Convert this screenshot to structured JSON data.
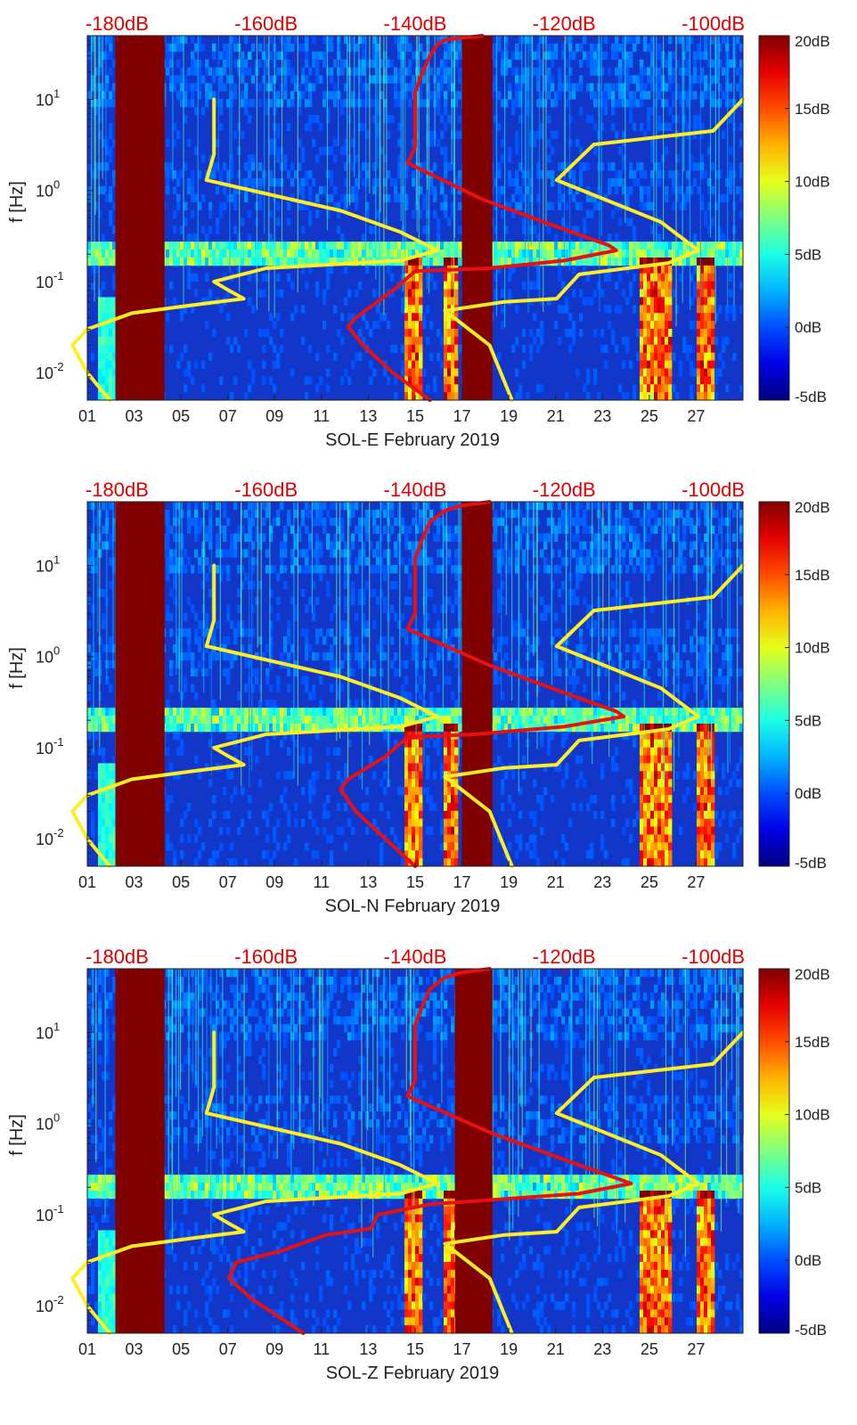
{
  "chart_data": [
    {
      "type": "heatmap",
      "title": "",
      "xlabel": "SOL-E February 2019",
      "ylabel": "f [Hz]",
      "x_ticks": [
        "01",
        "03",
        "05",
        "07",
        "09",
        "11",
        "13",
        "15",
        "17",
        "19",
        "21",
        "23",
        "25",
        "27"
      ],
      "y_ticks": [
        {
          "value": 0.01,
          "label": "10^-2"
        },
        {
          "value": 0.1,
          "label": "10^-1"
        },
        {
          "value": 1,
          "label": "10^0"
        },
        {
          "value": 10,
          "label": "10^1"
        }
      ],
      "xlim": [
        1,
        29
      ],
      "ylim": [
        0.005,
        50
      ],
      "yscale": "log",
      "colorbar": {
        "ticks": [
          "-5dB",
          "0dB",
          "5dB",
          "10dB",
          "15dB",
          "20dB"
        ],
        "range": [
          -5,
          20
        ],
        "colormap": "jet"
      },
      "top_axis": {
        "ticks": [
          "-180dB",
          "-160dB",
          "-140dB",
          "-120dB",
          "-100dB"
        ],
        "range": [
          -184,
          -96
        ],
        "color": "#e00000"
      },
      "data_gaps_days": [
        [
          2.2,
          4.3
        ],
        [
          17.0,
          18.3
        ]
      ],
      "colors": {
        "gap": "#800000",
        "yellow_line": "#ffee22",
        "red_line": "#e81010"
      },
      "series": [
        {
          "color": "yellow",
          "axis": "top",
          "points": [
            [
              -167,
              10
            ],
            [
              -167,
              6
            ],
            [
              -167,
              4
            ],
            [
              -167,
              2.5
            ],
            [
              -168,
              1.3
            ],
            [
              -150,
              0.6
            ],
            [
              -142,
              0.35
            ],
            [
              -137,
              0.22
            ],
            [
              -142,
              0.17
            ],
            [
              -160,
              0.14
            ],
            [
              -167,
              0.1
            ],
            [
              -165,
              0.08
            ],
            [
              -163,
              0.065
            ],
            [
              -170,
              0.055
            ],
            [
              -178,
              0.045
            ],
            [
              -184,
              0.03
            ],
            [
              -186,
              0.02
            ],
            [
              -184,
              0.01
            ],
            [
              -181,
              0.005
            ]
          ]
        },
        {
          "color": "yellow",
          "axis": "top",
          "points": [
            [
              -96,
              10
            ],
            [
              -100,
              4.5
            ],
            [
              -116,
              3.2
            ],
            [
              -121,
              1.3
            ],
            [
              -107,
              0.45
            ],
            [
              -102,
              0.22
            ],
            [
              -106,
              0.16
            ],
            [
              -118,
              0.12
            ],
            [
              -121,
              0.065
            ],
            [
              -128,
              0.06
            ],
            [
              -136,
              0.048
            ],
            [
              -130,
              0.02
            ],
            [
              -127,
              0.005
            ]
          ]
        },
        {
          "color": "red",
          "axis": "top",
          "points": [
            [
              -131,
              50
            ],
            [
              -136,
              45
            ],
            [
              -137,
              40
            ],
            [
              -138,
              30
            ],
            [
              -139,
              20
            ],
            [
              -140,
              12
            ],
            [
              -140,
              6
            ],
            [
              -140,
              3
            ],
            [
              -141,
              2
            ],
            [
              -131,
              0.8
            ],
            [
              -121,
              0.4
            ],
            [
              -114,
              0.25
            ],
            [
              -113,
              0.22
            ],
            [
              -120,
              0.17
            ],
            [
              -130,
              0.14
            ],
            [
              -140,
              0.13
            ],
            [
              -143,
              0.08
            ],
            [
              -148,
              0.04
            ],
            [
              -149,
              0.032
            ],
            [
              -147,
              0.02
            ],
            [
              -143,
              0.01
            ],
            [
              -138,
              0.005
            ]
          ]
        }
      ]
    },
    {
      "type": "heatmap",
      "title": "",
      "xlabel": "SOL-N February 2019",
      "ylabel": "f [Hz]",
      "x_ticks": [
        "01",
        "03",
        "05",
        "07",
        "09",
        "11",
        "13",
        "15",
        "17",
        "19",
        "21",
        "23",
        "25",
        "27"
      ],
      "y_ticks": [
        {
          "value": 0.01,
          "label": "10^-2"
        },
        {
          "value": 0.1,
          "label": "10^-1"
        },
        {
          "value": 1,
          "label": "10^0"
        },
        {
          "value": 10,
          "label": "10^1"
        }
      ],
      "xlim": [
        1,
        29
      ],
      "ylim": [
        0.005,
        50
      ],
      "yscale": "log",
      "colorbar": {
        "ticks": [
          "-5dB",
          "0dB",
          "5dB",
          "10dB",
          "15dB",
          "20dB"
        ],
        "range": [
          -5,
          20
        ],
        "colormap": "jet"
      },
      "top_axis": {
        "ticks": [
          "-180dB",
          "-160dB",
          "-140dB",
          "-120dB",
          "-100dB"
        ],
        "range": [
          -184,
          -96
        ],
        "color": "#e00000"
      },
      "data_gaps_days": [
        [
          2.2,
          4.3
        ],
        [
          17.0,
          18.3
        ]
      ],
      "colors": {
        "gap": "#800000",
        "yellow_line": "#ffee22",
        "red_line": "#e81010"
      },
      "series": [
        {
          "color": "yellow",
          "axis": "top",
          "points": [
            [
              -167,
              10
            ],
            [
              -167,
              6
            ],
            [
              -167,
              4
            ],
            [
              -167,
              2.5
            ],
            [
              -168,
              1.3
            ],
            [
              -150,
              0.6
            ],
            [
              -142,
              0.35
            ],
            [
              -137,
              0.22
            ],
            [
              -142,
              0.17
            ],
            [
              -160,
              0.14
            ],
            [
              -167,
              0.1
            ],
            [
              -165,
              0.08
            ],
            [
              -163,
              0.065
            ],
            [
              -170,
              0.055
            ],
            [
              -178,
              0.045
            ],
            [
              -184,
              0.03
            ],
            [
              -186,
              0.02
            ],
            [
              -184,
              0.01
            ],
            [
              -181,
              0.005
            ]
          ]
        },
        {
          "color": "yellow",
          "axis": "top",
          "points": [
            [
              -96,
              10
            ],
            [
              -100,
              4.5
            ],
            [
              -116,
              3.2
            ],
            [
              -121,
              1.3
            ],
            [
              -107,
              0.45
            ],
            [
              -102,
              0.22
            ],
            [
              -106,
              0.16
            ],
            [
              -118,
              0.12
            ],
            [
              -121,
              0.065
            ],
            [
              -128,
              0.06
            ],
            [
              -136,
              0.048
            ],
            [
              -130,
              0.02
            ],
            [
              -127,
              0.005
            ]
          ]
        },
        {
          "color": "red",
          "axis": "top",
          "points": [
            [
              -130,
              50
            ],
            [
              -134,
              45
            ],
            [
              -136,
              40
            ],
            [
              -138,
              30
            ],
            [
              -139,
              20
            ],
            [
              -140,
              12
            ],
            [
              -140,
              6
            ],
            [
              -140,
              3
            ],
            [
              -141,
              2
            ],
            [
              -130,
              0.8
            ],
            [
              -120,
              0.4
            ],
            [
              -113,
              0.25
            ],
            [
              -112,
              0.22
            ],
            [
              -120,
              0.17
            ],
            [
              -132,
              0.14
            ],
            [
              -141,
              0.13
            ],
            [
              -144,
              0.08
            ],
            [
              -149,
              0.045
            ],
            [
              -150,
              0.035
            ],
            [
              -148,
              0.02
            ],
            [
              -144,
              0.01
            ],
            [
              -140,
              0.005
            ]
          ]
        }
      ]
    },
    {
      "type": "heatmap",
      "title": "",
      "xlabel": "SOL-Z February 2019",
      "ylabel": "f [Hz]",
      "x_ticks": [
        "01",
        "03",
        "05",
        "07",
        "09",
        "11",
        "13",
        "15",
        "17",
        "19",
        "21",
        "23",
        "25",
        "27"
      ],
      "y_ticks": [
        {
          "value": 0.01,
          "label": "10^-2"
        },
        {
          "value": 0.1,
          "label": "10^-1"
        },
        {
          "value": 1,
          "label": "10^0"
        },
        {
          "value": 10,
          "label": "10^1"
        }
      ],
      "xlim": [
        1,
        29
      ],
      "ylim": [
        0.005,
        50
      ],
      "yscale": "log",
      "colorbar": {
        "ticks": [
          "-5dB",
          "0dB",
          "5dB",
          "10dB",
          "15dB",
          "20dB"
        ],
        "range": [
          -5,
          20
        ],
        "colormap": "jet"
      },
      "top_axis": {
        "ticks": [
          "-180dB",
          "-160dB",
          "-140dB",
          "-120dB",
          "-100dB"
        ],
        "range": [
          -184,
          -96
        ],
        "color": "#e00000"
      },
      "data_gaps_days": [
        [
          2.2,
          4.3
        ],
        [
          16.7,
          18.3
        ]
      ],
      "colors": {
        "gap": "#800000",
        "yellow_line": "#ffee22",
        "red_line": "#e81010"
      },
      "series": [
        {
          "color": "yellow",
          "axis": "top",
          "points": [
            [
              -167,
              10
            ],
            [
              -167,
              6
            ],
            [
              -167,
              4
            ],
            [
              -167,
              2.5
            ],
            [
              -168,
              1.3
            ],
            [
              -150,
              0.6
            ],
            [
              -142,
              0.35
            ],
            [
              -137,
              0.22
            ],
            [
              -142,
              0.17
            ],
            [
              -160,
              0.14
            ],
            [
              -167,
              0.1
            ],
            [
              -165,
              0.08
            ],
            [
              -163,
              0.065
            ],
            [
              -170,
              0.055
            ],
            [
              -178,
              0.045
            ],
            [
              -184,
              0.03
            ],
            [
              -186,
              0.02
            ],
            [
              -184,
              0.01
            ],
            [
              -181,
              0.005
            ]
          ]
        },
        {
          "color": "yellow",
          "axis": "top",
          "points": [
            [
              -96,
              10
            ],
            [
              -100,
              4.5
            ],
            [
              -116,
              3.2
            ],
            [
              -121,
              1.3
            ],
            [
              -107,
              0.45
            ],
            [
              -102,
              0.22
            ],
            [
              -106,
              0.16
            ],
            [
              -118,
              0.12
            ],
            [
              -121,
              0.065
            ],
            [
              -128,
              0.06
            ],
            [
              -136,
              0.048
            ],
            [
              -130,
              0.02
            ],
            [
              -127,
              0.005
            ]
          ]
        },
        {
          "color": "red",
          "axis": "top",
          "points": [
            [
              -130,
              50
            ],
            [
              -134,
              45
            ],
            [
              -136,
              40
            ],
            [
              -138,
              30
            ],
            [
              -139,
              20
            ],
            [
              -140,
              12
            ],
            [
              -140,
              6
            ],
            [
              -140,
              3
            ],
            [
              -141,
              2
            ],
            [
              -130,
              0.8
            ],
            [
              -118,
              0.35
            ],
            [
              -111,
              0.22
            ],
            [
              -118,
              0.17
            ],
            [
              -138,
              0.13
            ],
            [
              -145,
              0.1
            ],
            [
              -146,
              0.07
            ],
            [
              -152,
              0.06
            ],
            [
              -158,
              0.04
            ],
            [
              -164,
              0.03
            ],
            [
              -165,
              0.02
            ],
            [
              -162,
              0.012
            ],
            [
              -155,
              0.005
            ]
          ]
        }
      ]
    }
  ]
}
